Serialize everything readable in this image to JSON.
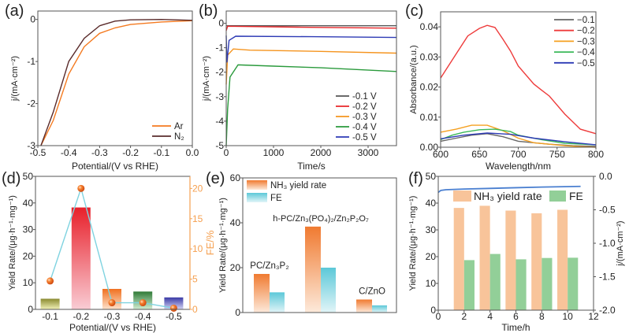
{
  "chart_data": [
    {
      "panel": "(a)",
      "type": "line",
      "xlabel": "Potential/(V vs RHE)",
      "ylabel": "j/(mA·cm⁻²)",
      "xlim": [
        -0.5,
        0
      ],
      "ylim": [
        -3,
        0.2
      ],
      "xticks": [
        {
          "v": -0.5,
          "label": "-0.5"
        },
        {
          "v": -0.4,
          "label": "-0.4"
        },
        {
          "v": -0.3,
          "label": "-0.3"
        },
        {
          "v": -0.2,
          "label": "-0.2"
        },
        {
          "v": -0.1,
          "label": "-0.1"
        },
        {
          "v": 0,
          "label": "0.0"
        }
      ],
      "yticks": [
        {
          "v": -3,
          "label": "-3"
        },
        {
          "v": -2,
          "label": "-2"
        },
        {
          "v": -1,
          "label": "-1"
        },
        {
          "v": 0,
          "label": "0"
        }
      ],
      "legend_position": "bottom-right",
      "series": [
        {
          "name": "Ar",
          "color": "#f47a20",
          "x": [
            -0.49,
            -0.45,
            -0.4,
            -0.35,
            -0.3,
            -0.25,
            -0.2,
            -0.1,
            0
          ],
          "y": [
            -3,
            -2.4,
            -1.3,
            -0.65,
            -0.33,
            -0.2,
            -0.12,
            -0.06,
            -0.03
          ]
        },
        {
          "name": "N₂",
          "color": "#5a2b2b",
          "x": [
            -0.49,
            -0.45,
            -0.4,
            -0.35,
            -0.3,
            -0.25,
            -0.2,
            -0.1,
            0
          ],
          "y": [
            -3,
            -2.2,
            -1.0,
            -0.45,
            -0.15,
            -0.04,
            -0.01,
            0,
            -0.02
          ]
        }
      ]
    },
    {
      "panel": "(b)",
      "type": "line",
      "xlabel": "Time/s",
      "ylabel": "j/(mA·cm⁻²)",
      "xlim": [
        0,
        3600
      ],
      "ylim": [
        -5,
        0.5
      ],
      "xticks": [
        {
          "v": 0,
          "label": "0"
        },
        {
          "v": 1000,
          "label": "1000"
        },
        {
          "v": 2000,
          "label": "2000"
        },
        {
          "v": 3000,
          "label": "3000"
        }
      ],
      "yticks": [
        {
          "v": -5,
          "label": "-5"
        },
        {
          "v": -4,
          "label": "-4"
        },
        {
          "v": -3,
          "label": "-3"
        },
        {
          "v": -2,
          "label": "-2"
        },
        {
          "v": -1,
          "label": "-1"
        },
        {
          "v": 0,
          "label": "0"
        }
      ],
      "legend_position": "bottom-right",
      "series": [
        {
          "name": "-0.1 V",
          "color": "#555555",
          "x": [
            0,
            3600
          ],
          "y": [
            -0.1,
            -0.1
          ]
        },
        {
          "name": "-0.2 V",
          "color": "#e8272a",
          "x": [
            0,
            30,
            1500,
            3600
          ],
          "y": [
            -0.3,
            -0.12,
            -0.16,
            -0.2
          ]
        },
        {
          "name": "-0.3 V",
          "color": "#f5941e",
          "x": [
            0,
            30,
            150,
            500,
            2000,
            3600
          ],
          "y": [
            -2.5,
            -1.3,
            -1.05,
            -1.1,
            -1.15,
            -1.22
          ]
        },
        {
          "name": "-0.4 V",
          "color": "#2a9a3c",
          "x": [
            0,
            30,
            80,
            250,
            1000,
            2000,
            3600
          ],
          "y": [
            -5,
            -3.5,
            -2.2,
            -1.7,
            -1.75,
            -1.82,
            -1.97
          ]
        },
        {
          "name": "-0.5 V",
          "color": "#2d3ab5",
          "x": [
            0,
            15,
            60,
            200,
            1800,
            3600
          ],
          "y": [
            -0.5,
            -1.6,
            -0.7,
            -0.53,
            -0.55,
            -0.58
          ]
        }
      ]
    },
    {
      "panel": "(c)",
      "type": "line",
      "xlabel": "Wavelength/nm",
      "ylabel": "Absorbance/(a.u.)",
      "xlim": [
        600,
        800
      ],
      "ylim": [
        0,
        0.045
      ],
      "xticks": [
        {
          "v": 600,
          "label": "600"
        },
        {
          "v": 650,
          "label": "650"
        },
        {
          "v": 700,
          "label": "700"
        },
        {
          "v": 750,
          "label": "750"
        },
        {
          "v": 800,
          "label": "800"
        }
      ],
      "yticks": [
        {
          "v": 0,
          "label": "0.00"
        },
        {
          "v": 0.01,
          "label": "0.01"
        },
        {
          "v": 0.02,
          "label": "0.02"
        },
        {
          "v": 0.03,
          "label": "0.03"
        },
        {
          "v": 0.04,
          "label": "0.04"
        }
      ],
      "legend_position": "top-right",
      "series": [
        {
          "name": "−0.1",
          "color": "#666666",
          "x": [
            600,
            620,
            640,
            660,
            680,
            700,
            720,
            740,
            770,
            800
          ],
          "y": [
            0.002,
            0.003,
            0.004,
            0.0045,
            0.0035,
            0.002,
            0.0015,
            0.001,
            0.0005,
            0.0003
          ]
        },
        {
          "name": "−0.2",
          "color": "#ee3b3b",
          "x": [
            600,
            620,
            635,
            650,
            660,
            670,
            680,
            690,
            700,
            720,
            730,
            740,
            760,
            780,
            800
          ],
          "y": [
            0.023,
            0.031,
            0.037,
            0.0395,
            0.0405,
            0.0398,
            0.036,
            0.032,
            0.027,
            0.021,
            0.019,
            0.017,
            0.011,
            0.006,
            0.0045
          ]
        },
        {
          "name": "−0.3",
          "color": "#f5a020",
          "x": [
            600,
            620,
            640,
            660,
            680,
            700,
            720,
            740,
            760,
            780,
            800
          ],
          "y": [
            0.005,
            0.006,
            0.0073,
            0.0073,
            0.0055,
            0.003,
            0.0015,
            0.001,
            0.0005,
            0.0002,
            0
          ]
        },
        {
          "name": "−0.4",
          "color": "#3cb95a",
          "x": [
            600,
            615,
            630,
            650,
            670,
            690,
            700,
            730,
            760,
            800
          ],
          "y": [
            0.0025,
            0.004,
            0.005,
            0.0058,
            0.006,
            0.0052,
            0.004,
            0.0025,
            0.0013,
            0.0008
          ]
        },
        {
          "name": "−0.5",
          "color": "#2d3ab5",
          "x": [
            600,
            630,
            660,
            690,
            720,
            760,
            800
          ],
          "y": [
            0.0028,
            0.004,
            0.0047,
            0.0043,
            0.003,
            0.0018,
            0.0008
          ]
        }
      ]
    },
    {
      "panel": "(d)",
      "type": "bar",
      "xlabel": "Potential/(V vs RHE)",
      "ylabel": "Yield Rate/(μg·h⁻¹·mg⁻¹)",
      "y2label": "FE/%",
      "categories": [
        "-0.1",
        "-0.2",
        "-0.3",
        "-0.4",
        "-0.5"
      ],
      "ylim": [
        0,
        50
      ],
      "y2lim": [
        0,
        22
      ],
      "yticks": [
        {
          "v": 0,
          "label": "0"
        },
        {
          "v": 10,
          "label": "10"
        },
        {
          "v": 20,
          "label": "20"
        },
        {
          "v": 30,
          "label": "30"
        },
        {
          "v": 40,
          "label": "40"
        },
        {
          "v": 50,
          "label": "50"
        }
      ],
      "y2ticks": [
        {
          "v": 0,
          "label": "0"
        },
        {
          "v": 5,
          "label": "5"
        },
        {
          "v": 10,
          "label": "10"
        },
        {
          "v": 15,
          "label": "15"
        },
        {
          "v": 20,
          "label": "20"
        }
      ],
      "series": [
        {
          "name": "Yield Rate",
          "values": [
            4.0,
            38.3,
            7.7,
            6.7,
            4.5
          ],
          "colors": [
            [
              "#8a8a30",
              "#f2f2b8"
            ],
            [
              "#e8202a",
              "#f9ccd4"
            ],
            [
              "#f07020",
              "#fde2cc"
            ],
            [
              "#2f7a36",
              "#d2eed4"
            ],
            [
              "#3a3aa6",
              "#d6d6f4"
            ]
          ]
        },
        {
          "name": "FE",
          "values": [
            4.7,
            20.0,
            1.1,
            1.1,
            0.2
          ],
          "color": "#f06a1e",
          "line_color": "#7fd3e0"
        }
      ],
      "y2_color": "#f5a050"
    },
    {
      "panel": "(e)",
      "type": "bar",
      "xlabel": "",
      "ylabel": "Yield Rate/(μg·h⁻¹·mg⁻¹)",
      "categories": [
        "PC/Zn₃P₂",
        "h-PC/Zn₃(PO₄)₂/Zn₂P₂O₇",
        "C/ZnO"
      ],
      "ylim": [
        0,
        60
      ],
      "yticks": [
        {
          "v": 0,
          "label": "0"
        },
        {
          "v": 20,
          "label": "20"
        },
        {
          "v": 40,
          "label": "40"
        },
        {
          "v": 60,
          "label": "60"
        }
      ],
      "legend_position": "top-left",
      "series": [
        {
          "name": "NH₃ yield rate",
          "values": [
            17.2,
            38.3,
            5.8
          ],
          "colors": [
            "#f07a30",
            "#fdeadb"
          ]
        },
        {
          "name": "FE",
          "values": [
            9.0,
            20.0,
            3.2
          ],
          "colors": [
            "#5cc8d8",
            "#e2f5f8"
          ]
        }
      ]
    },
    {
      "panel": "(f)",
      "type": "bar",
      "xlabel": "Time/h",
      "ylabel": "Yield Rate/(μg·h⁻¹·mg⁻¹)",
      "y2label": "j/(mA·cm⁻²)",
      "xlim": [
        0,
        12
      ],
      "ylim": [
        0,
        50
      ],
      "y2lim": [
        -2,
        0
      ],
      "xticks": [
        {
          "v": 0,
          "label": "0"
        },
        {
          "v": 2,
          "label": "2"
        },
        {
          "v": 4,
          "label": "4"
        },
        {
          "v": 6,
          "label": "6"
        },
        {
          "v": 8,
          "label": "8"
        },
        {
          "v": 10,
          "label": "10"
        },
        {
          "v": 12,
          "label": "12"
        }
      ],
      "yticks": [
        {
          "v": 0,
          "label": "0"
        },
        {
          "v": 10,
          "label": "10"
        },
        {
          "v": 20,
          "label": "20"
        },
        {
          "v": 30,
          "label": "30"
        },
        {
          "v": 40,
          "label": "40"
        },
        {
          "v": 50,
          "label": "50"
        }
      ],
      "y2ticks": [
        {
          "v": -2,
          "label": "-2.0"
        },
        {
          "v": -1.5,
          "label": "-1.5"
        },
        {
          "v": -1,
          "label": "-1.0"
        },
        {
          "v": -0.5,
          "label": "-0.5"
        },
        {
          "v": 0,
          "label": "0.0"
        }
      ],
      "legend_position": "top",
      "x": [
        2,
        4,
        6,
        8,
        10
      ],
      "series": [
        {
          "name": "NH₃ yield rate",
          "values": [
            38.2,
            39.0,
            37.2,
            36.2,
            37.5
          ],
          "color": "#f8c49a"
        },
        {
          "name": "FE",
          "values": [
            18.7,
            21.0,
            19.0,
            19.5,
            19.6
          ],
          "color": "#92cf98"
        },
        {
          "name": "j",
          "axis": "right",
          "color": "#4a7fd0",
          "x": [
            0,
            0.2,
            0.6,
            2,
            4,
            6,
            8,
            11
          ],
          "y": [
            -0.24,
            -0.21,
            -0.2,
            -0.19,
            -0.18,
            -0.17,
            -0.16,
            -0.15
          ]
        }
      ]
    }
  ]
}
